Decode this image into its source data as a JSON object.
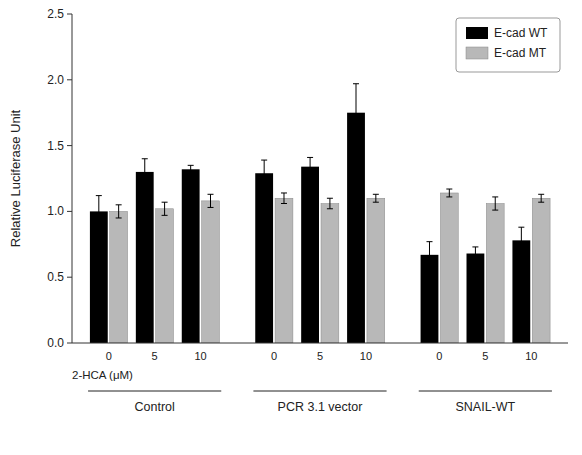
{
  "chart_data": {
    "type": "bar",
    "categories": [
      "0",
      "5",
      "10",
      "0",
      "5",
      "10",
      "0",
      "5",
      "10"
    ],
    "groups": [
      "Control",
      "PCR 3.1 vector",
      "SNAIL-WT"
    ],
    "xlabel": "2-HCA (μM)",
    "ylabel": "Relative Luciferase Unit",
    "series": [
      {
        "name": "E-cad WT",
        "color": "#000000",
        "values": [
          1.0,
          1.3,
          1.32,
          1.29,
          1.34,
          1.75,
          0.67,
          0.68,
          0.78
        ],
        "errors": [
          0.12,
          0.1,
          0.03,
          0.1,
          0.07,
          0.22,
          0.1,
          0.05,
          0.1
        ]
      },
      {
        "name": "E-cad MT",
        "color": "#b8b8b8",
        "values": [
          1.0,
          1.02,
          1.08,
          1.1,
          1.06,
          1.1,
          1.14,
          1.06,
          1.1
        ],
        "errors": [
          0.05,
          0.05,
          0.05,
          0.04,
          0.04,
          0.03,
          0.03,
          0.05,
          0.03
        ]
      }
    ],
    "ylim": [
      0.0,
      2.5
    ],
    "yticks": [
      {
        "value": 0.0,
        "label": "0.0"
      },
      {
        "value": 0.5,
        "label": "0.5"
      },
      {
        "value": 1.0,
        "label": "1.0"
      },
      {
        "value": 1.5,
        "label": "1.5"
      },
      {
        "value": 2.0,
        "label": "2.0"
      },
      {
        "value": 2.5,
        "label": "2.5"
      }
    ],
    "grid": false,
    "legend": "upper right"
  }
}
